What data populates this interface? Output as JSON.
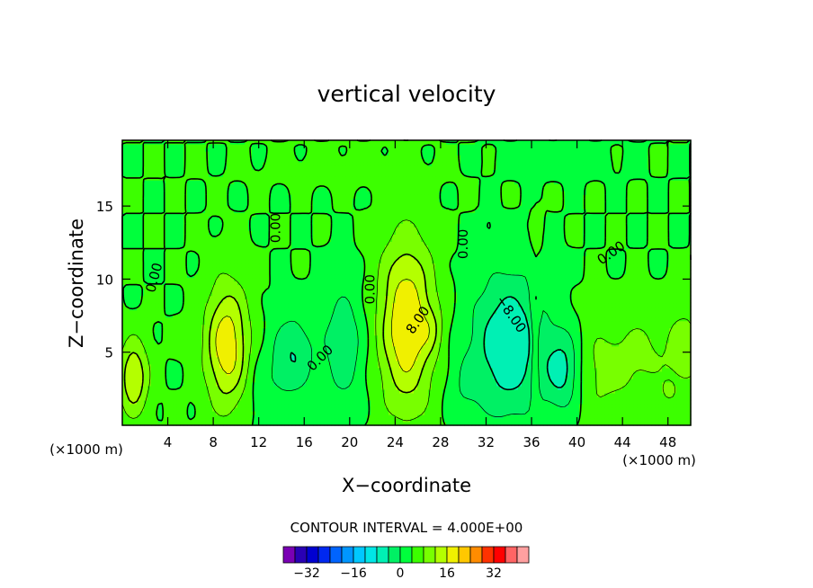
{
  "chart_data": {
    "type": "heatmap",
    "title": "vertical velocity",
    "xlabel": "X−coordinate",
    "ylabel": "Z−coordinate",
    "x_unit_left": "(×1000 m)",
    "x_unit_right": "(×1000 m)",
    "xlim": [
      0,
      50
    ],
    "ylim": [
      0,
      19.5
    ],
    "x_ticks": [
      4,
      8,
      12,
      16,
      20,
      24,
      28,
      32,
      36,
      40,
      44,
      48
    ],
    "y_ticks": [
      5,
      10,
      15
    ],
    "contour_interval_label": "CONTOUR INTERVAL = 4.000E+00",
    "contour_labels": [
      {
        "text": "0.00",
        "x": 2.8,
        "z": 10.1,
        "angle": -75
      },
      {
        "text": "0.00",
        "x": 13.5,
        "z": 13.5,
        "angle": -90
      },
      {
        "text": "0.00",
        "x": 21.8,
        "z": 9.3,
        "angle": -90
      },
      {
        "text": "0.00",
        "x": 30.0,
        "z": 12.4,
        "angle": -90
      },
      {
        "text": "0.00",
        "x": 43.0,
        "z": 11.8,
        "angle": -35
      },
      {
        "text": "0.00",
        "x": 17.4,
        "z": 4.6,
        "angle": -45
      },
      {
        "text": "8.00",
        "x": 26.0,
        "z": 7.2,
        "angle": -55
      },
      {
        "text": "−8.00",
        "x": 34.2,
        "z": 7.6,
        "angle": 55
      }
    ],
    "colorbar": {
      "levels": [
        -36,
        -32,
        -28,
        -24,
        -20,
        -16,
        -12,
        -8,
        -4,
        0,
        4,
        8,
        12,
        16,
        20,
        24,
        28,
        32,
        36
      ],
      "colors": [
        "#7a00b4",
        "#2a00b4",
        "#0000d0",
        "#0028f0",
        "#0064ff",
        "#0096ff",
        "#00c8ff",
        "#00e6e6",
        "#00f0b4",
        "#00f064",
        "#00ff3c",
        "#3cff00",
        "#78ff00",
        "#b4ff00",
        "#f0f000",
        "#ffc800",
        "#ff8c00",
        "#ff3200",
        "#ff0000",
        "#ff6464",
        "#ffa0a0"
      ],
      "tick_labels": [
        "−32",
        "−16",
        "0",
        "16",
        "32"
      ],
      "tick_values": [
        -32,
        -16,
        0,
        16,
        32
      ]
    },
    "features": [
      {
        "x": 1.0,
        "z": 3.3,
        "rx": 1.3,
        "rz": 2.6,
        "w": 12
      },
      {
        "x": 9.2,
        "z": 5.5,
        "rx": 1.9,
        "rz": 4.2,
        "w": 15
      },
      {
        "x": 25.0,
        "z": 7.0,
        "rx": 2.4,
        "rz": 5.8,
        "w": 16
      },
      {
        "x": 27.2,
        "z": 6.5,
        "rx": 1.0,
        "rz": 1.5,
        "w": 4
      },
      {
        "x": 42.0,
        "z": 3.8,
        "rx": 3.0,
        "rz": 3.5,
        "w": 5
      },
      {
        "x": 46.0,
        "z": 5.0,
        "rx": 2.5,
        "rz": 3.0,
        "w": 4
      },
      {
        "x": 49.5,
        "z": 5.2,
        "rx": 1.5,
        "rz": 3.0,
        "w": 6
      },
      {
        "x": 48.0,
        "z": 2.2,
        "rx": 0.8,
        "rz": 0.9,
        "w": 3
      },
      {
        "x": 5.0,
        "z": 6.0,
        "rx": 0.8,
        "rz": 1.0,
        "w": 3
      },
      {
        "x": 15.0,
        "z": 4.8,
        "rx": 1.8,
        "rz": 2.8,
        "w": -8
      },
      {
        "x": 19.5,
        "z": 5.5,
        "rx": 1.8,
        "rz": 4.0,
        "w": -7
      },
      {
        "x": 34.0,
        "z": 5.5,
        "rx": 3.2,
        "rz": 4.8,
        "w": -12
      },
      {
        "x": 38.8,
        "z": 3.8,
        "rx": 1.6,
        "rz": 2.8,
        "w": -10
      },
      {
        "x": 36.3,
        "z": 6.0,
        "rx": 0.4,
        "rz": 4.5,
        "w": 6
      },
      {
        "x": 36.5,
        "z": 13.5,
        "rx": 0.4,
        "rz": 1.5,
        "w": 3
      },
      {
        "x": 12.5,
        "z": 2.5,
        "rx": 1.5,
        "rz": 2.5,
        "w": -3
      },
      {
        "x": 30.0,
        "z": 2.5,
        "rx": 1.5,
        "rz": 2.5,
        "w": -3
      },
      {
        "x": 20.0,
        "z": 17.5,
        "rx": 8.0,
        "rz": 1.2,
        "w": 2
      },
      {
        "x": 38.0,
        "z": 18.0,
        "rx": 6.0,
        "rz": 1.0,
        "w": -2
      }
    ]
  }
}
